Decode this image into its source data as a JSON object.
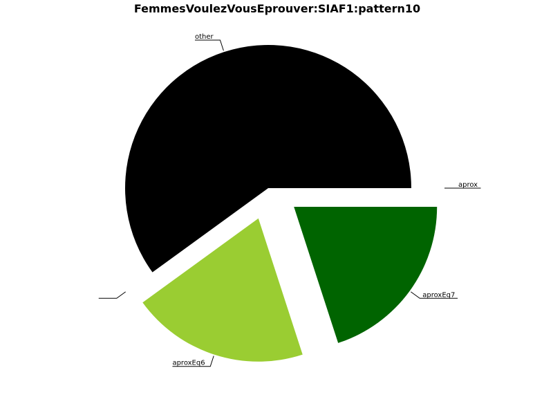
{
  "chart_data": {
    "type": "pie",
    "title": "FemmesVoulezVousEprouver:SIAF1:pattern10",
    "slices": [
      {
        "label": "aprox",
        "value": 0.0,
        "color": "#000000",
        "exploded": true
      },
      {
        "label": "other",
        "value": 60.0,
        "color": "#000000",
        "exploded": false
      },
      {
        "label": "",
        "value": 0.0,
        "color": "#000000",
        "exploded": true
      },
      {
        "label": "aproxEq6",
        "value": 20.0,
        "color": "#9acd32",
        "exploded": true
      },
      {
        "label": "aproxEq7",
        "value": 20.0,
        "color": "#006400",
        "exploded": true
      }
    ],
    "start_angle_deg": 0,
    "direction": "counterclockwise",
    "legend": "none"
  }
}
